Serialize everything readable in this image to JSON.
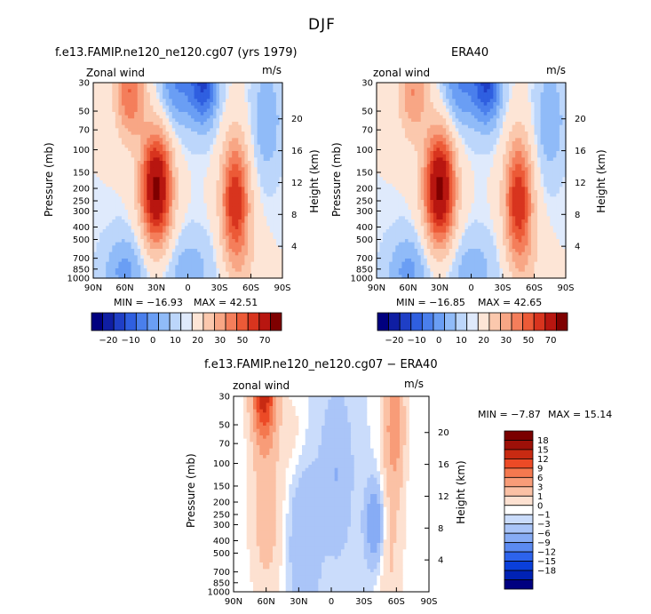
{
  "figure": {
    "title": "DJF"
  },
  "chart_data": [
    {
      "type": "heatmap",
      "id": "model",
      "title": "f.e13.FAMIP.ne120_ne120.cg07 (yrs 1979)",
      "left_label": "Zonal wind",
      "units": "m/s",
      "ylabel": "Pressure (mb)",
      "y2label": "Height (km)",
      "x_ticks": [
        "90N",
        "60N",
        "30N",
        "0",
        "30S",
        "60S",
        "90S"
      ],
      "y_ticks": [
        "30",
        "50",
        "70",
        "100",
        "150",
        "200",
        "250",
        "300",
        "400",
        "500",
        "700",
        "850",
        "1000"
      ],
      "height_ticks": [
        "20",
        "16",
        "12",
        "8",
        "4"
      ],
      "min_text": "MIN = −16.93",
      "max_text": "MAX = 42.51",
      "min": -16.93,
      "max": 42.51,
      "features": [
        {
          "kind": "jet",
          "lat": 30,
          "pressure": 200,
          "peak": 42.5
        },
        {
          "kind": "jet",
          "lat": -45,
          "pressure": 250,
          "peak": 30
        },
        {
          "kind": "easterly",
          "lat": -15,
          "pressure": 30,
          "peak": -16.9
        }
      ],
      "colorbar": {
        "labels": [
          "−20",
          "−10",
          "0",
          "10",
          "20",
          "30",
          "50",
          "70"
        ],
        "levels": [
          -25,
          -20,
          -15,
          -10,
          -5,
          0,
          5,
          10,
          15,
          20,
          25,
          30,
          40,
          50,
          60,
          70
        ]
      }
    },
    {
      "type": "heatmap",
      "id": "era40",
      "title": "ERA40",
      "left_label": "zonal wind",
      "units": "m/s",
      "ylabel": "Pressure (mb)",
      "y2label": "Height (km)",
      "x_ticks": [
        "90N",
        "60N",
        "30N",
        "0",
        "30S",
        "60S",
        "90S"
      ],
      "y_ticks": [
        "30",
        "50",
        "70",
        "100",
        "150",
        "200",
        "250",
        "300",
        "400",
        "500",
        "700",
        "850",
        "1000"
      ],
      "height_ticks": [
        "20",
        "16",
        "12",
        "8",
        "4"
      ],
      "min_text": "MIN = −16.85",
      "max_text": "MAX = 42.65",
      "min": -16.85,
      "max": 42.65,
      "features": [
        {
          "kind": "jet",
          "lat": 30,
          "pressure": 200,
          "peak": 42.65
        },
        {
          "kind": "jet",
          "lat": -45,
          "pressure": 250,
          "peak": 32
        },
        {
          "kind": "easterly",
          "lat": -12,
          "pressure": 30,
          "peak": -16.85
        }
      ],
      "colorbar": {
        "labels": [
          "−20",
          "−10",
          "0",
          "10",
          "20",
          "30",
          "50",
          "70"
        ],
        "levels": [
          -25,
          -20,
          -15,
          -10,
          -5,
          0,
          5,
          10,
          15,
          20,
          25,
          30,
          40,
          50,
          60,
          70
        ]
      }
    },
    {
      "type": "heatmap",
      "id": "diff",
      "title": "f.e13.FAMIP.ne120_ne120.cg07 − ERA40",
      "left_label": "zonal wind",
      "units": "m/s",
      "ylabel": "Pressure (mb)",
      "y2label": "Height (km)",
      "x_ticks": [
        "90N",
        "60N",
        "30N",
        "0",
        "30S",
        "60S",
        "90S"
      ],
      "y_ticks": [
        "30",
        "50",
        "70",
        "100",
        "150",
        "200",
        "250",
        "300",
        "400",
        "500",
        "700",
        "850",
        "1000"
      ],
      "height_ticks": [
        "20",
        "16",
        "12",
        "8",
        "4"
      ],
      "min_text": "MIN =   −7.87",
      "max_text": "MAX =   15.14",
      "min": -7.87,
      "max": 15.14,
      "features": [
        {
          "kind": "positive",
          "lat": 60,
          "pressure": 30,
          "peak": 15.14
        },
        {
          "kind": "positive",
          "lat": -55,
          "pressure": 50,
          "peak": 9
        },
        {
          "kind": "negative",
          "lat": -40,
          "pressure": 300,
          "peak": -7.87
        }
      ],
      "colorbar": {
        "labels": [
          "18",
          "15",
          "12",
          "9",
          "6",
          "3",
          "1",
          "0",
          "−1",
          "−3",
          "−6",
          "−9",
          "−12",
          "−15",
          "−18"
        ],
        "levels": [
          -21,
          -18,
          -15,
          -12,
          -9,
          -6,
          -3,
          -1,
          0,
          1,
          3,
          6,
          9,
          12,
          15,
          18,
          21
        ]
      }
    }
  ],
  "palette": {
    "cold": [
      "#00007f",
      "#0f1ea3",
      "#1f3fc6",
      "#2f5fe0",
      "#4a7fec",
      "#6a9ef4",
      "#90bbf8",
      "#bcd6fb",
      "#dfeafc"
    ],
    "warm": [
      "#fde5d6",
      "#fbc8ad",
      "#f8a685",
      "#f47e5b",
      "#ec5a37",
      "#d8341e",
      "#b81610",
      "#7f0000"
    ],
    "diff": [
      "#000080",
      "#0022b5",
      "#0a3fdb",
      "#2d63ec",
      "#5b8af1",
      "#87acf5",
      "#aac5f8",
      "#cadcfb",
      "#ffffff",
      "#fde1d1",
      "#fbc1a5",
      "#f89c78",
      "#f4784f",
      "#ec4a26",
      "#c82a12",
      "#9d1008",
      "#7a0000"
    ]
  }
}
